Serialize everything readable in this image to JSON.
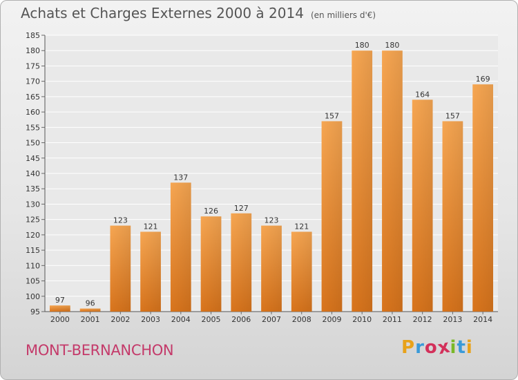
{
  "title": "Achats et Charges Externes 2000 à 2014",
  "subtitle": "(en milliers d'€)",
  "location": "MONT-BERNANCHON",
  "logo": {
    "letters": [
      "P",
      "r",
      "o",
      "x",
      "i",
      "t",
      "i"
    ],
    "colors": [
      "#e8a21a",
      "#3a9ad9",
      "#d3305a",
      "#d3305a",
      "#7ab829",
      "#3a9ad9",
      "#e8a21a"
    ]
  },
  "chart_data": {
    "type": "bar",
    "title": "Achats et Charges Externes 2000 à 2014",
    "subtitle": "(en milliers d'€)",
    "xlabel": "",
    "ylabel": "",
    "categories": [
      "2000",
      "2001",
      "2002",
      "2003",
      "2004",
      "2005",
      "2006",
      "2007",
      "2008",
      "2009",
      "2010",
      "2011",
      "2012",
      "2013",
      "2014"
    ],
    "values": [
      97,
      96,
      123,
      121,
      137,
      126,
      127,
      123,
      121,
      157,
      180,
      180,
      164,
      157,
      169
    ],
    "ylim": [
      95,
      185
    ],
    "yticks": [
      95,
      100,
      105,
      110,
      115,
      120,
      125,
      130,
      135,
      140,
      145,
      150,
      155,
      160,
      165,
      170,
      175,
      180,
      185
    ],
    "grid": true,
    "bar_color": "#f0912e",
    "legend": "none"
  }
}
